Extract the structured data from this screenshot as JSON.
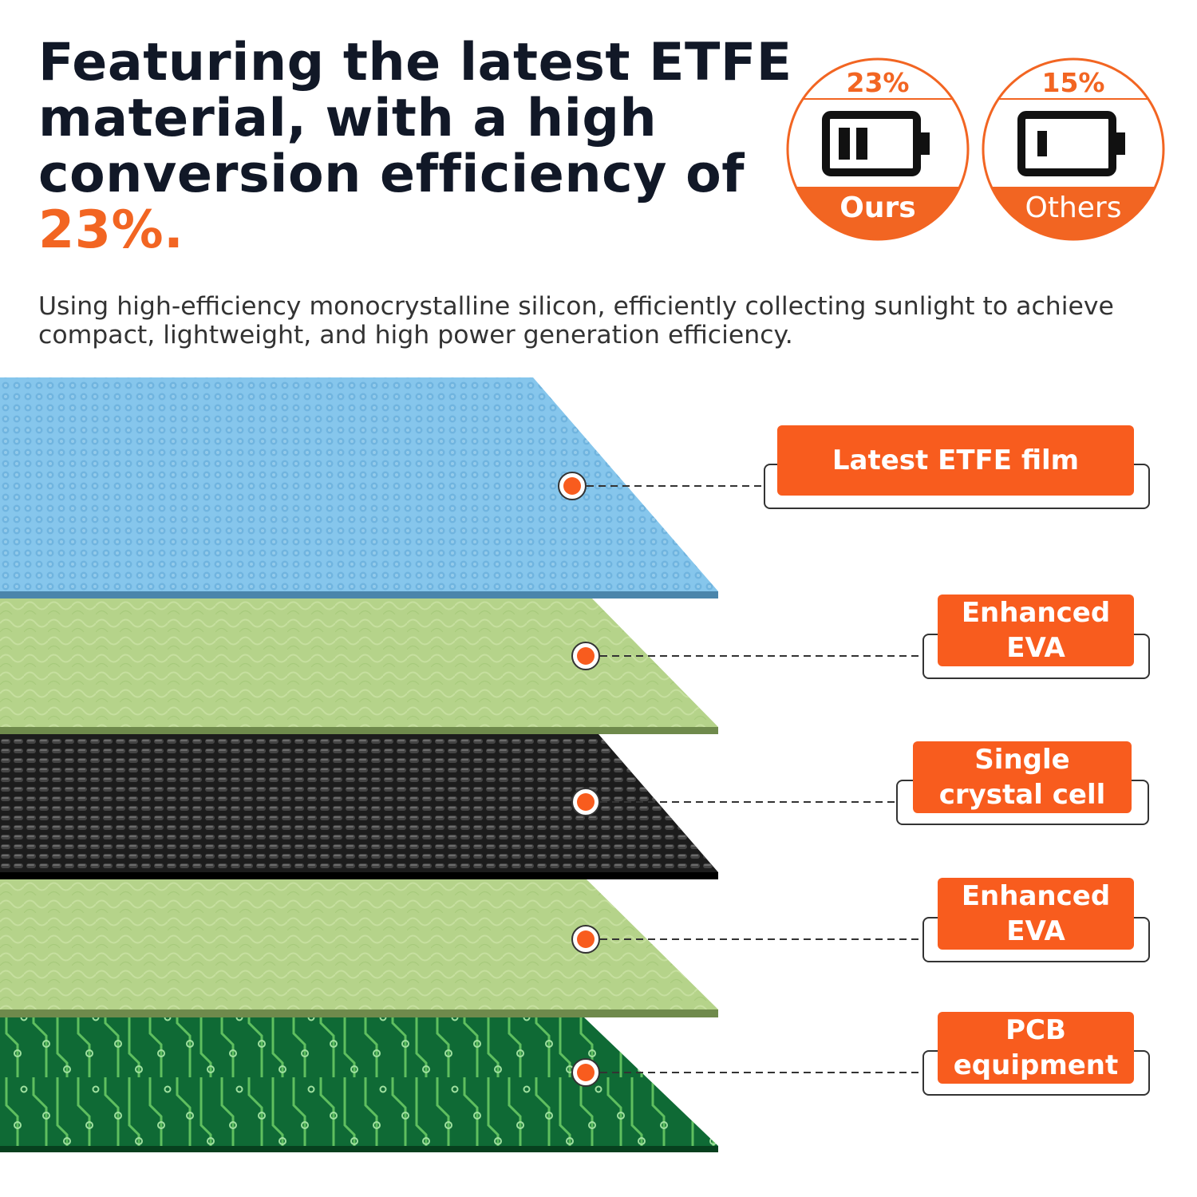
{
  "headline": {
    "text_before": "Featuring the latest ETFE material, with a high conversion efficiency of",
    "highlight": "23%."
  },
  "description": "Using high-efficiency monocrystalline silicon, efficiently collecting sunlight to achieve compact, lightweight, and high power generation efficiency.",
  "comparison": [
    {
      "percent": "23%",
      "label": "Ours",
      "charge_level": 0.4,
      "icon": "battery-icon"
    },
    {
      "percent": "15%",
      "label": "Others",
      "charge_level": 0.15,
      "icon": "battery-icon"
    }
  ],
  "layers": [
    {
      "label_line1": "Latest ETFE film",
      "label_line2": "",
      "color": "#86c6ec"
    },
    {
      "label_line1": "Enhanced",
      "label_line2": "EVA",
      "color": "#b5d38a"
    },
    {
      "label_line1": "Single",
      "label_line2": "crystal cell",
      "color": "#1c1c1c"
    },
    {
      "label_line1": "Enhanced",
      "label_line2": "EVA",
      "color": "#b5d38a"
    },
    {
      "label_line1": "PCB",
      "label_line2": "equipment",
      "color": "#0f6a35"
    }
  ],
  "colors": {
    "accent": "#f26522",
    "tag": "#f85c1e",
    "dark_text": "#111827"
  }
}
